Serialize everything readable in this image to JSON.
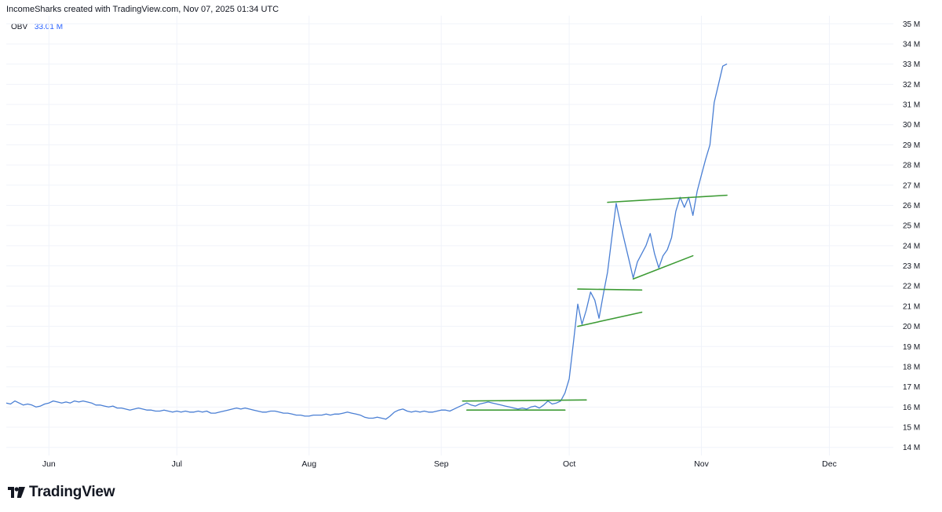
{
  "header": {
    "attribution": "IncomeSharks created with TradingView.com, Nov 07, 2025 01:34 UTC"
  },
  "legend": {
    "indicator": "OBV",
    "value": "33.01 M"
  },
  "brand": {
    "name": "TradingView",
    "logo_icon": "tradingview-logo-icon"
  },
  "colors": {
    "series": "#4a7fd4",
    "trendline": "#3d9b35",
    "grid": "#f0f3fa",
    "axis_text": "#131722"
  },
  "chart_data": {
    "type": "line",
    "ylim": [
      13.6,
      35.4
    ],
    "xlim_days": [
      0,
      208
    ],
    "y_ticks": [
      {
        "value": 35,
        "label": "35 M"
      },
      {
        "value": 34,
        "label": "34 M"
      },
      {
        "value": 33,
        "label": "33 M"
      },
      {
        "value": 32,
        "label": "32 M"
      },
      {
        "value": 31,
        "label": "31 M"
      },
      {
        "value": 30,
        "label": "30 M"
      },
      {
        "value": 29,
        "label": "29 M"
      },
      {
        "value": 28,
        "label": "28 M"
      },
      {
        "value": 27,
        "label": "27 M"
      },
      {
        "value": 26,
        "label": "26 M"
      },
      {
        "value": 25,
        "label": "25 M"
      },
      {
        "value": 24,
        "label": "24 M"
      },
      {
        "value": 23,
        "label": "23 M"
      },
      {
        "value": 22,
        "label": "22 M"
      },
      {
        "value": 21,
        "label": "21 M"
      },
      {
        "value": 20,
        "label": "20 M"
      },
      {
        "value": 19,
        "label": "19 M"
      },
      {
        "value": 18,
        "label": "18 M"
      },
      {
        "value": 17,
        "label": "17 M"
      },
      {
        "value": 16,
        "label": "16 M"
      },
      {
        "value": 15,
        "label": "15 M"
      },
      {
        "value": 14,
        "label": "14 M"
      }
    ],
    "x_ticks": [
      {
        "day": 10,
        "label": "Jun"
      },
      {
        "day": 40,
        "label": "Jul"
      },
      {
        "day": 71,
        "label": "Aug"
      },
      {
        "day": 102,
        "label": "Sep"
      },
      {
        "day": 132,
        "label": "Oct"
      },
      {
        "day": 163,
        "label": "Nov"
      },
      {
        "day": 193,
        "label": "Dec"
      }
    ],
    "series": [
      {
        "values": [
          [
            0,
            16.2
          ],
          [
            1,
            16.15
          ],
          [
            2,
            16.3
          ],
          [
            3,
            16.2
          ],
          [
            4,
            16.1
          ],
          [
            5,
            16.15
          ],
          [
            6,
            16.1
          ],
          [
            7,
            16.0
          ],
          [
            8,
            16.05
          ],
          [
            9,
            16.15
          ],
          [
            10,
            16.2
          ],
          [
            11,
            16.3
          ],
          [
            12,
            16.25
          ],
          [
            13,
            16.2
          ],
          [
            14,
            16.25
          ],
          [
            15,
            16.2
          ],
          [
            16,
            16.3
          ],
          [
            17,
            16.25
          ],
          [
            18,
            16.3
          ],
          [
            19,
            16.25
          ],
          [
            20,
            16.2
          ],
          [
            21,
            16.1
          ],
          [
            22,
            16.1
          ],
          [
            23,
            16.05
          ],
          [
            24,
            16.0
          ],
          [
            25,
            16.05
          ],
          [
            26,
            15.95
          ],
          [
            27,
            15.95
          ],
          [
            28,
            15.9
          ],
          [
            29,
            15.85
          ],
          [
            30,
            15.9
          ],
          [
            31,
            15.95
          ],
          [
            32,
            15.9
          ],
          [
            33,
            15.85
          ],
          [
            34,
            15.85
          ],
          [
            35,
            15.8
          ],
          [
            36,
            15.8
          ],
          [
            37,
            15.85
          ],
          [
            38,
            15.8
          ],
          [
            39,
            15.75
          ],
          [
            40,
            15.8
          ],
          [
            41,
            15.75
          ],
          [
            42,
            15.8
          ],
          [
            43,
            15.75
          ],
          [
            44,
            15.75
          ],
          [
            45,
            15.8
          ],
          [
            46,
            15.75
          ],
          [
            47,
            15.8
          ],
          [
            48,
            15.7
          ],
          [
            49,
            15.7
          ],
          [
            50,
            15.75
          ],
          [
            51,
            15.8
          ],
          [
            52,
            15.85
          ],
          [
            53,
            15.9
          ],
          [
            54,
            15.95
          ],
          [
            55,
            15.9
          ],
          [
            56,
            15.95
          ],
          [
            57,
            15.9
          ],
          [
            58,
            15.85
          ],
          [
            59,
            15.8
          ],
          [
            60,
            15.75
          ],
          [
            61,
            15.75
          ],
          [
            62,
            15.8
          ],
          [
            63,
            15.8
          ],
          [
            64,
            15.75
          ],
          [
            65,
            15.7
          ],
          [
            66,
            15.7
          ],
          [
            67,
            15.65
          ],
          [
            68,
            15.6
          ],
          [
            69,
            15.6
          ],
          [
            70,
            15.55
          ],
          [
            71,
            15.55
          ],
          [
            72,
            15.6
          ],
          [
            73,
            15.6
          ],
          [
            74,
            15.6
          ],
          [
            75,
            15.65
          ],
          [
            76,
            15.6
          ],
          [
            77,
            15.65
          ],
          [
            78,
            15.65
          ],
          [
            79,
            15.7
          ],
          [
            80,
            15.75
          ],
          [
            81,
            15.7
          ],
          [
            82,
            15.65
          ],
          [
            83,
            15.6
          ],
          [
            84,
            15.5
          ],
          [
            85,
            15.45
          ],
          [
            86,
            15.45
          ],
          [
            87,
            15.5
          ],
          [
            88,
            15.45
          ],
          [
            89,
            15.4
          ],
          [
            90,
            15.55
          ],
          [
            91,
            15.75
          ],
          [
            92,
            15.85
          ],
          [
            93,
            15.9
          ],
          [
            94,
            15.8
          ],
          [
            95,
            15.75
          ],
          [
            96,
            15.8
          ],
          [
            97,
            15.75
          ],
          [
            98,
            15.8
          ],
          [
            99,
            15.75
          ],
          [
            100,
            15.75
          ],
          [
            101,
            15.8
          ],
          [
            102,
            15.85
          ],
          [
            103,
            15.85
          ],
          [
            104,
            15.8
          ],
          [
            105,
            15.9
          ],
          [
            106,
            16.0
          ],
          [
            107,
            16.1
          ],
          [
            108,
            16.2
          ],
          [
            109,
            16.1
          ],
          [
            110,
            16.05
          ],
          [
            111,
            16.15
          ],
          [
            112,
            16.2
          ],
          [
            113,
            16.25
          ],
          [
            114,
            16.2
          ],
          [
            115,
            16.15
          ],
          [
            116,
            16.1
          ],
          [
            117,
            16.05
          ],
          [
            118,
            16.0
          ],
          [
            119,
            15.95
          ],
          [
            120,
            15.9
          ],
          [
            121,
            15.95
          ],
          [
            122,
            15.9
          ],
          [
            123,
            16.0
          ],
          [
            124,
            16.05
          ],
          [
            125,
            15.95
          ],
          [
            126,
            16.1
          ],
          [
            127,
            16.3
          ],
          [
            128,
            16.15
          ],
          [
            129,
            16.2
          ],
          [
            130,
            16.3
          ],
          [
            131,
            16.7
          ],
          [
            132,
            17.4
          ],
          [
            133,
            19.2
          ],
          [
            134,
            21.1
          ],
          [
            135,
            20.1
          ],
          [
            136,
            20.8
          ],
          [
            137,
            21.7
          ],
          [
            138,
            21.3
          ],
          [
            139,
            20.4
          ],
          [
            140,
            21.6
          ],
          [
            141,
            22.7
          ],
          [
            142,
            24.4
          ],
          [
            143,
            26.1
          ],
          [
            144,
            25.1
          ],
          [
            145,
            24.2
          ],
          [
            146,
            23.3
          ],
          [
            147,
            22.4
          ],
          [
            148,
            23.2
          ],
          [
            149,
            23.6
          ],
          [
            150,
            24.0
          ],
          [
            151,
            24.6
          ],
          [
            152,
            23.6
          ],
          [
            153,
            22.9
          ],
          [
            154,
            23.5
          ],
          [
            155,
            23.8
          ],
          [
            156,
            24.4
          ],
          [
            157,
            25.7
          ],
          [
            158,
            26.4
          ],
          [
            159,
            25.9
          ],
          [
            160,
            26.4
          ],
          [
            161,
            25.5
          ],
          [
            162,
            26.7
          ],
          [
            163,
            27.5
          ],
          [
            164,
            28.3
          ],
          [
            165,
            29.0
          ],
          [
            166,
            31.1
          ],
          [
            167,
            32.0
          ],
          [
            168,
            32.9
          ],
          [
            169,
            33.01
          ]
        ]
      }
    ],
    "trendlines": [
      {
        "from": [
          107,
          16.3
        ],
        "to": [
          136,
          16.35
        ]
      },
      {
        "from": [
          108,
          15.85
        ],
        "to": [
          131,
          15.85
        ]
      },
      {
        "from": [
          134,
          20.0
        ],
        "to": [
          149,
          20.7
        ]
      },
      {
        "from": [
          134,
          21.85
        ],
        "to": [
          149,
          21.8
        ]
      },
      {
        "from": [
          147,
          22.35
        ],
        "to": [
          161,
          23.5
        ]
      },
      {
        "from": [
          141,
          26.15
        ],
        "to": [
          169,
          26.5
        ]
      }
    ],
    "grid": true
  }
}
